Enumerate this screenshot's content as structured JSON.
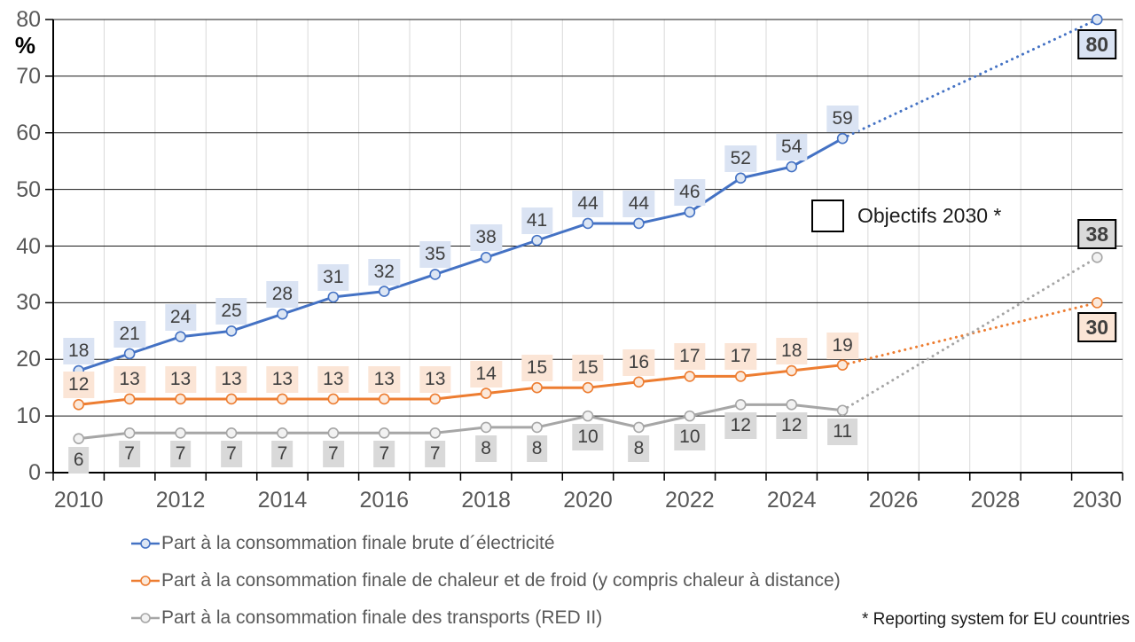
{
  "chart_data": {
    "type": "line",
    "title": "",
    "unit": "%",
    "ylim": [
      0,
      80
    ],
    "y_ticks": [
      0,
      10,
      20,
      30,
      40,
      50,
      60,
      70,
      80
    ],
    "years": [
      2010,
      2011,
      2012,
      2013,
      2014,
      2015,
      2016,
      2017,
      2018,
      2019,
      2020,
      2021,
      2022,
      2023,
      2024,
      2025
    ],
    "x_axis_tick_labels": [
      "2010",
      "2012",
      "2014",
      "2016",
      "2018",
      "2020",
      "2022",
      "2024",
      "2026",
      "2028",
      "2030"
    ],
    "x_range": [
      2010,
      2030
    ],
    "grid": {
      "horizontal": true,
      "vertical": true
    },
    "legend_position": "bottom-left",
    "series": [
      {
        "name": "Part à la consommation finale brute d´électricité",
        "color": "#4472C4",
        "marker_fill": "#DCE6F4",
        "label_bg": "#DAE3F3",
        "values": [
          18,
          21,
          24,
          25,
          28,
          31,
          32,
          35,
          38,
          41,
          44,
          44,
          46,
          52,
          54,
          59
        ],
        "label_position": "above",
        "target_2030": {
          "value": 80,
          "label_position": "below"
        }
      },
      {
        "name": "Part à la consommation finale de chaleur et de froid (y compris chaleur à distance)",
        "color": "#ED7D31",
        "marker_fill": "#FBE9DB",
        "label_bg": "#FBE5D6",
        "values": [
          12,
          13,
          13,
          13,
          13,
          13,
          13,
          13,
          14,
          15,
          15,
          16,
          17,
          17,
          18,
          19
        ],
        "label_position": "above",
        "target_2030": {
          "value": 30,
          "label_position": "below"
        }
      },
      {
        "name": "Part à la consommation finale des transports (RED II)",
        "color": "#A6A6A6",
        "marker_fill": "#F2F2F2",
        "label_bg": "#D9D9D9",
        "values": [
          6,
          7,
          7,
          7,
          7,
          7,
          7,
          7,
          8,
          8,
          10,
          8,
          10,
          12,
          12,
          11
        ],
        "label_position": "below",
        "target_2030": {
          "value": 38,
          "label_position": "above"
        }
      }
    ],
    "objectives_label": "Objectifs 2030 *",
    "footnote": "* Reporting system for EU countries"
  }
}
